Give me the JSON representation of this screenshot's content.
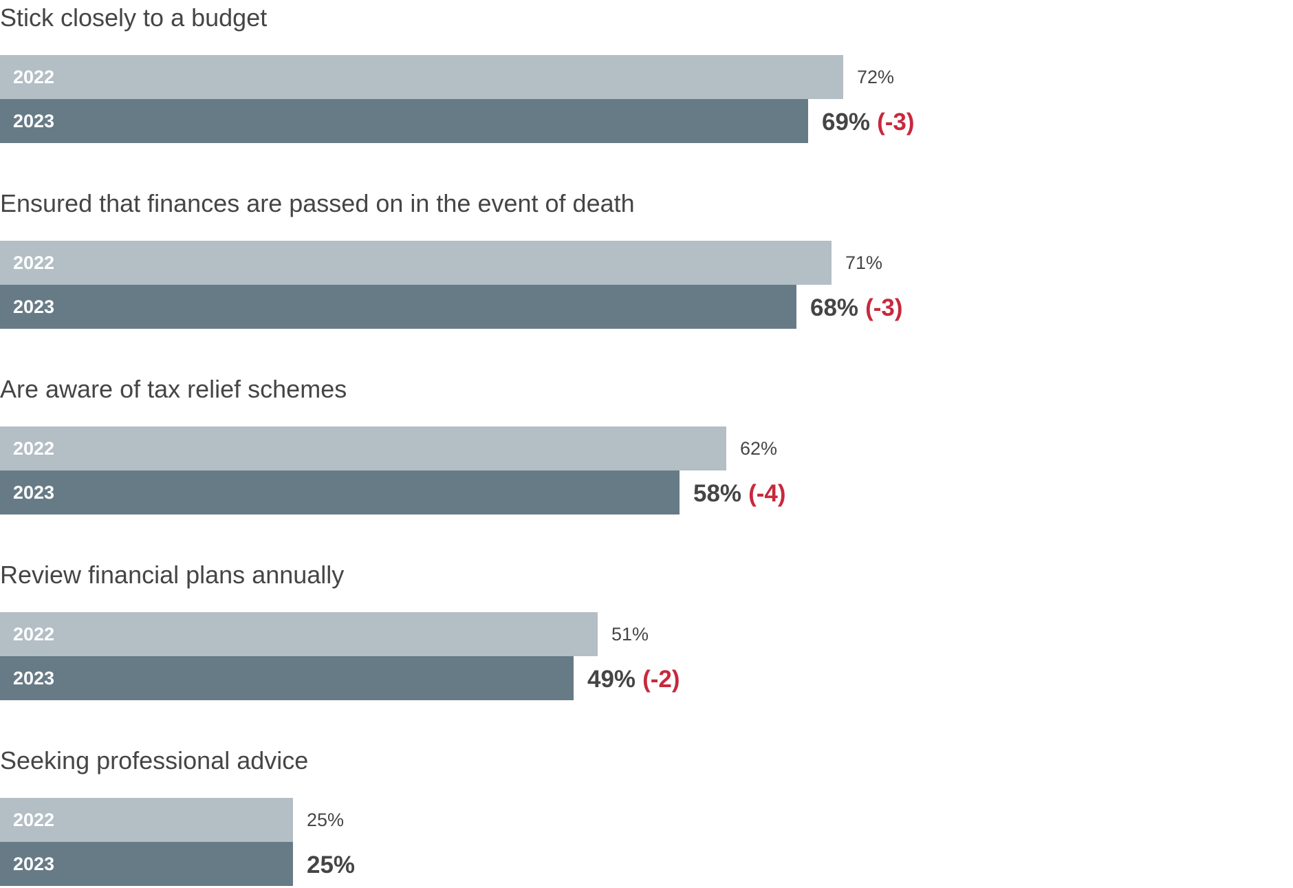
{
  "chart_data": {
    "type": "bar",
    "orientation": "horizontal",
    "value_max": 100,
    "series": [
      {
        "name": "2022",
        "color": "#b3bec5"
      },
      {
        "name": "2023",
        "color": "#677b87"
      }
    ],
    "change_color": "#c8283d",
    "categories": [
      {
        "label": "Stick closely to a budget",
        "v2022": 72,
        "v2022_label": "72%",
        "v2023": 69,
        "v2023_label": "69%",
        "change": -3,
        "change_label": "(-3)"
      },
      {
        "label": "Ensured that finances are passed on in the event of death",
        "v2022": 71,
        "v2022_label": "71%",
        "v2023": 68,
        "v2023_label": "68%",
        "change": -3,
        "change_label": "(-3)"
      },
      {
        "label": "Are aware of tax relief schemes",
        "v2022": 62,
        "v2022_label": "62%",
        "v2023": 58,
        "v2023_label": "58%",
        "change": -4,
        "change_label": "(-4)"
      },
      {
        "label": "Review financial plans annually",
        "v2022": 51,
        "v2022_label": "51%",
        "v2023": 49,
        "v2023_label": "49%",
        "change": -2,
        "change_label": "(-2)"
      },
      {
        "label": "Seeking professional advice",
        "v2022": 25,
        "v2022_label": "25%",
        "v2023": 25,
        "v2023_label": "25%",
        "change": null,
        "change_label": ""
      }
    ]
  }
}
